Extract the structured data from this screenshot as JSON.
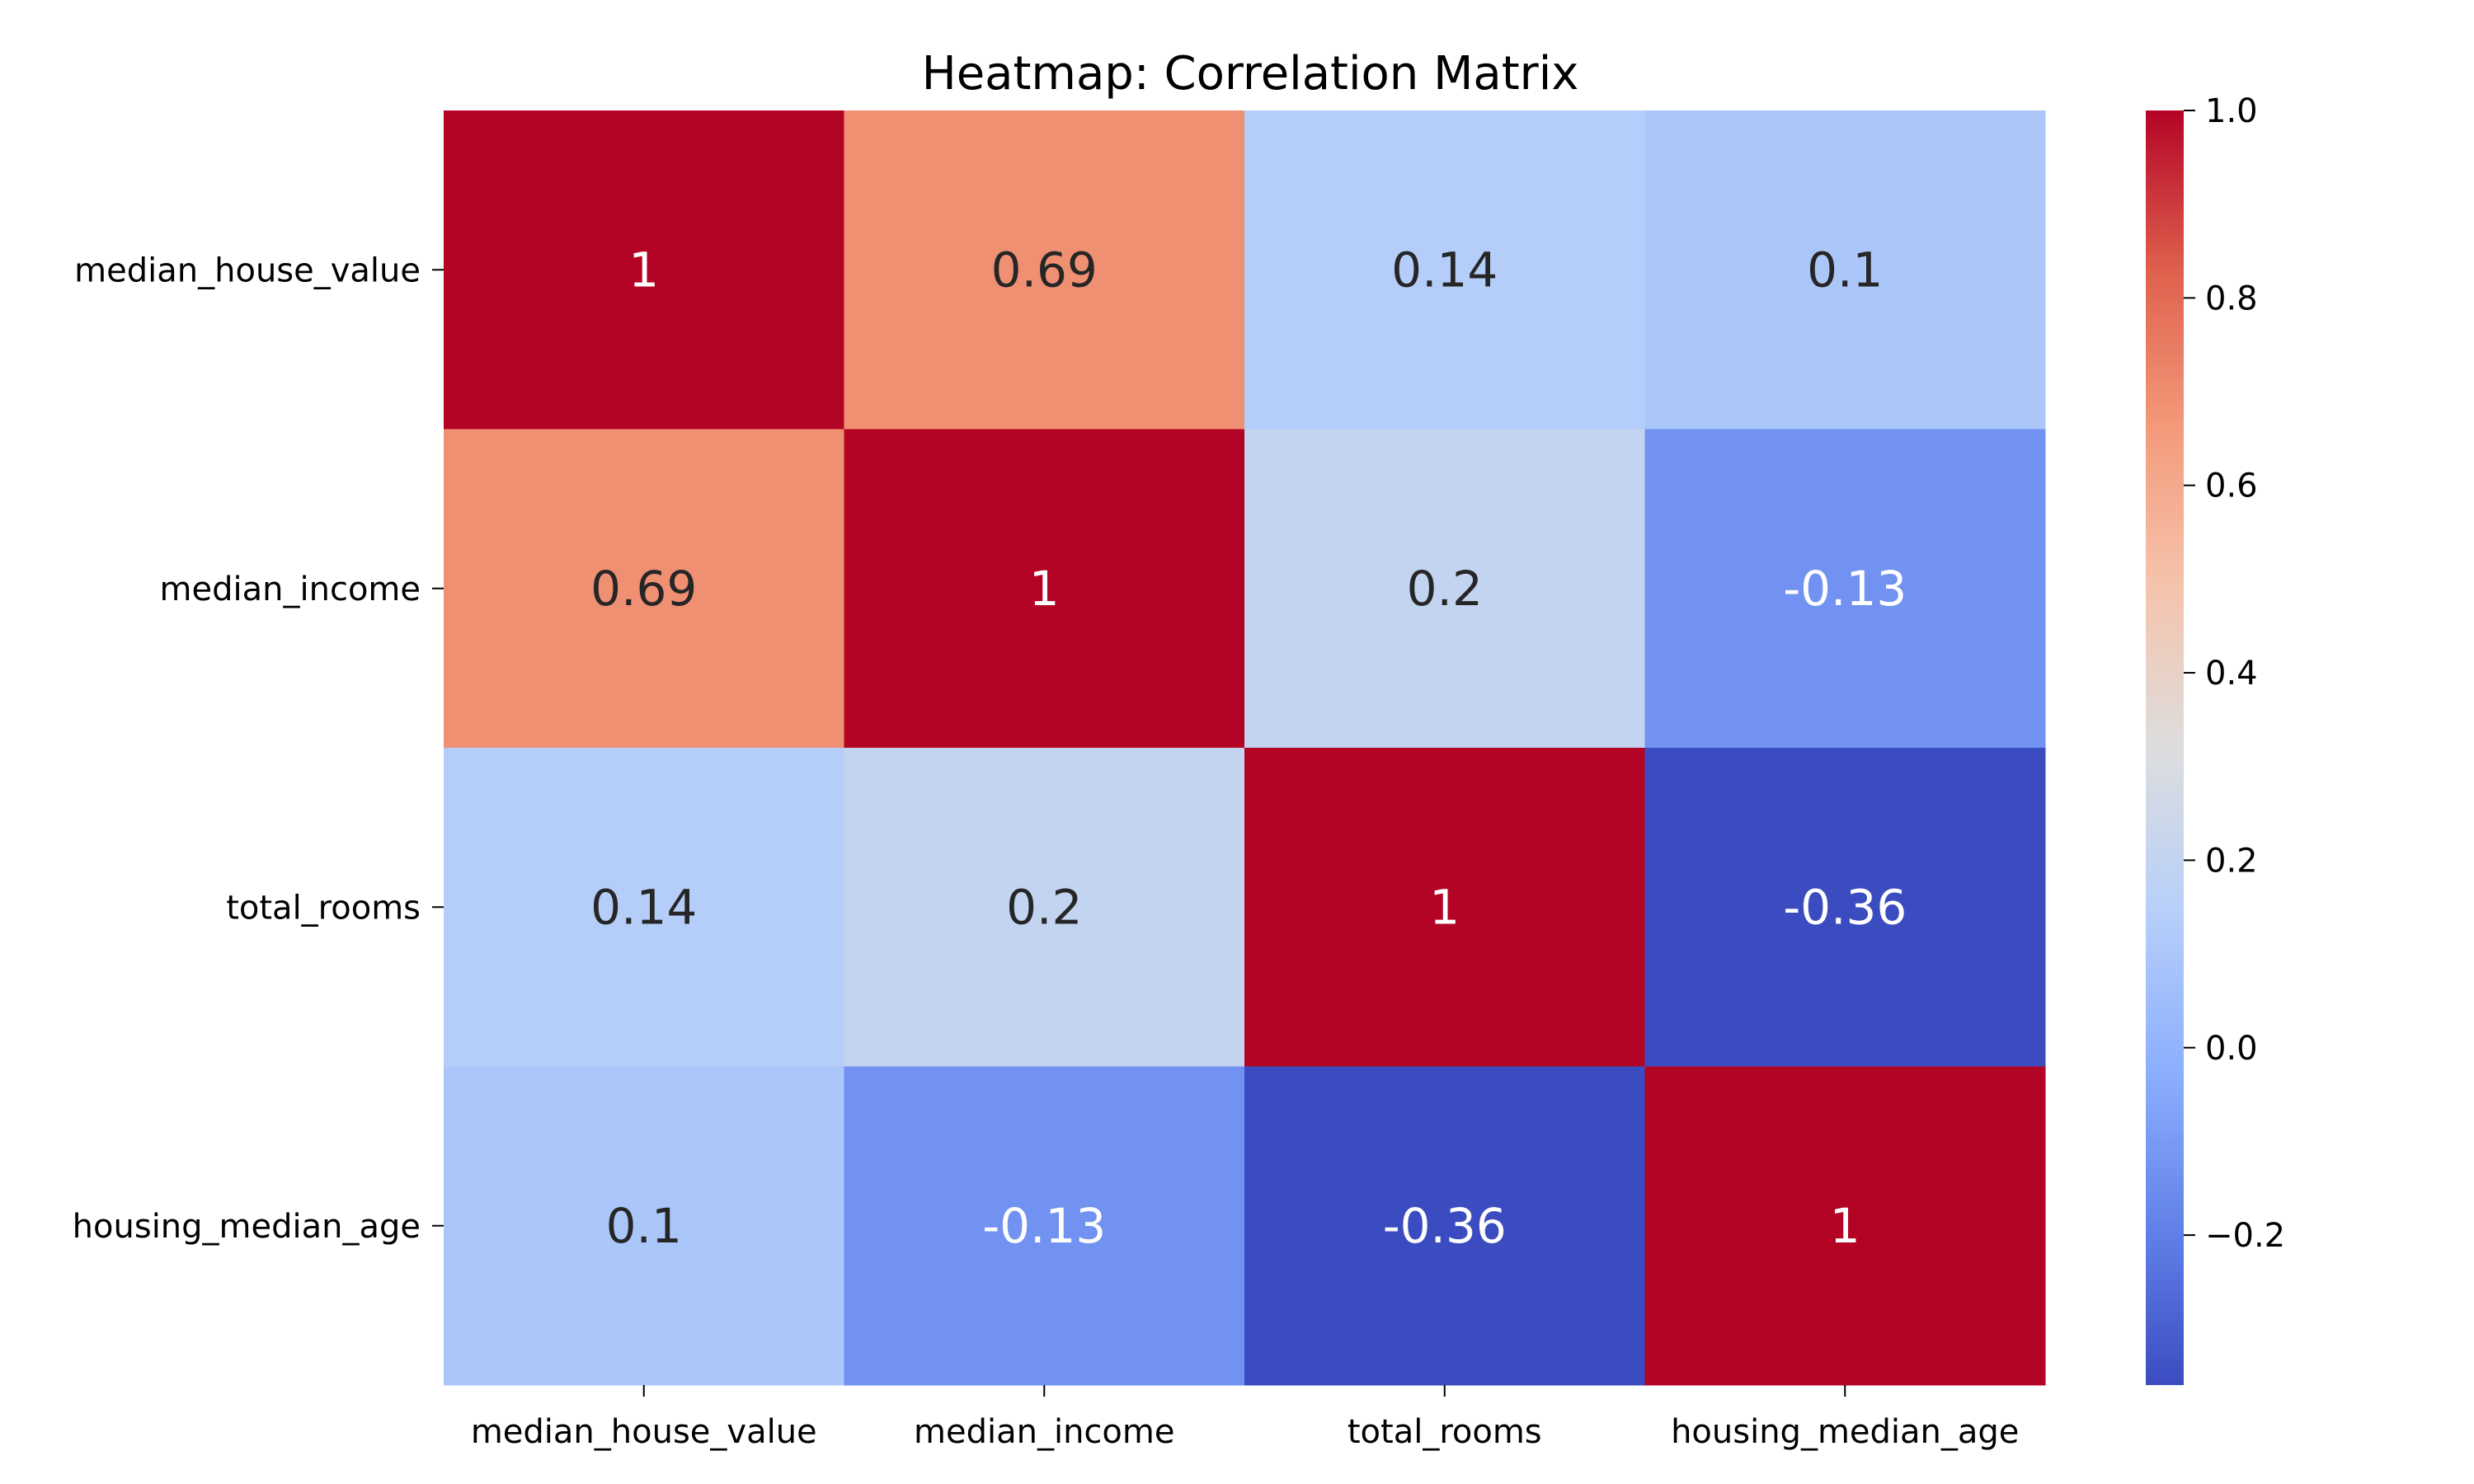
{
  "chart_data": {
    "type": "heatmap",
    "title": "Heatmap: Correlation Matrix",
    "colormap": "coolwarm",
    "row_labels": [
      "median_house_value",
      "median_income",
      "total_rooms",
      "housing_median_age"
    ],
    "col_labels": [
      "median_house_value",
      "median_income",
      "total_rooms",
      "housing_median_age"
    ],
    "values": [
      [
        1,
        0.69,
        0.14,
        0.1
      ],
      [
        0.69,
        1,
        0.2,
        -0.13
      ],
      [
        0.14,
        0.2,
        1,
        -0.36
      ],
      [
        0.1,
        -0.13,
        -0.36,
        1
      ]
    ],
    "cell_labels": [
      [
        "1",
        "0.69",
        "0.14",
        "0.1"
      ],
      [
        "0.69",
        "1",
        "0.2",
        "-0.13"
      ],
      [
        "0.14",
        "0.2",
        "1",
        "-0.36"
      ],
      [
        "0.1",
        "-0.13",
        "-0.36",
        "1"
      ]
    ],
    "colorbar": {
      "range": [
        -0.36,
        1
      ],
      "ticks": [
        1.0,
        0.8,
        0.6,
        0.4,
        0.2,
        0.0,
        -0.2
      ],
      "tick_labels": [
        "1.0",
        "0.8",
        "0.6",
        "0.4",
        "0.2",
        "0.0",
        "−0.2"
      ]
    }
  }
}
